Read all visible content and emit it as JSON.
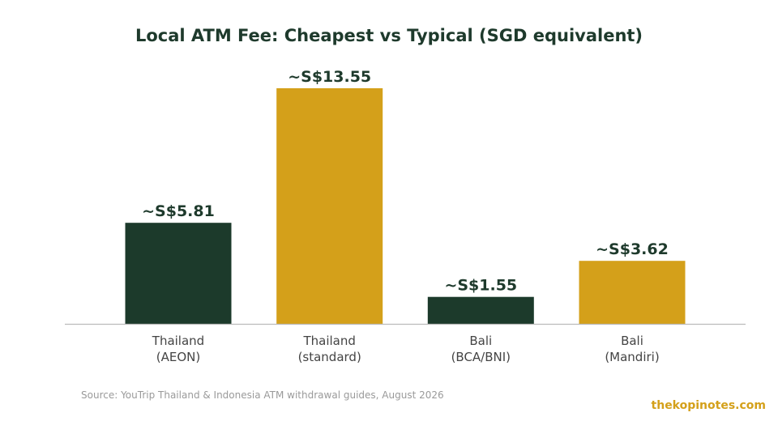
{
  "chart_data": {
    "type": "bar",
    "title": "Local ATM Fee: Cheapest vs Typical (SGD equivalent)",
    "xlabel": "",
    "ylabel": "",
    "categories": [
      [
        "Thailand",
        "(AEON)"
      ],
      [
        "Thailand",
        "(standard)"
      ],
      [
        "Bali",
        "(BCA/BNI)"
      ],
      [
        "Bali",
        "(Mandiri)"
      ]
    ],
    "values": [
      5.81,
      13.55,
      1.55,
      3.62
    ],
    "data_labels": [
      "~S$5.81",
      "~S$13.55",
      "~S$1.55",
      "~S$3.62"
    ],
    "bar_colors": [
      "#1c3a2b",
      "#d4a01a",
      "#1c3a2b",
      "#d4a01a"
    ],
    "ylim": [
      0,
      14.2
    ],
    "grid": false,
    "y_axis_visible": false
  },
  "source": "Source: YouTrip Thailand & Indonesia ATM withdrawal guides, August 2026",
  "brand": "thekopinotes.com",
  "colors": {
    "dark_green": "#1c3a2b",
    "gold": "#d4a01a",
    "title": "#1e3a2c",
    "axis": "#bbbbbb"
  }
}
